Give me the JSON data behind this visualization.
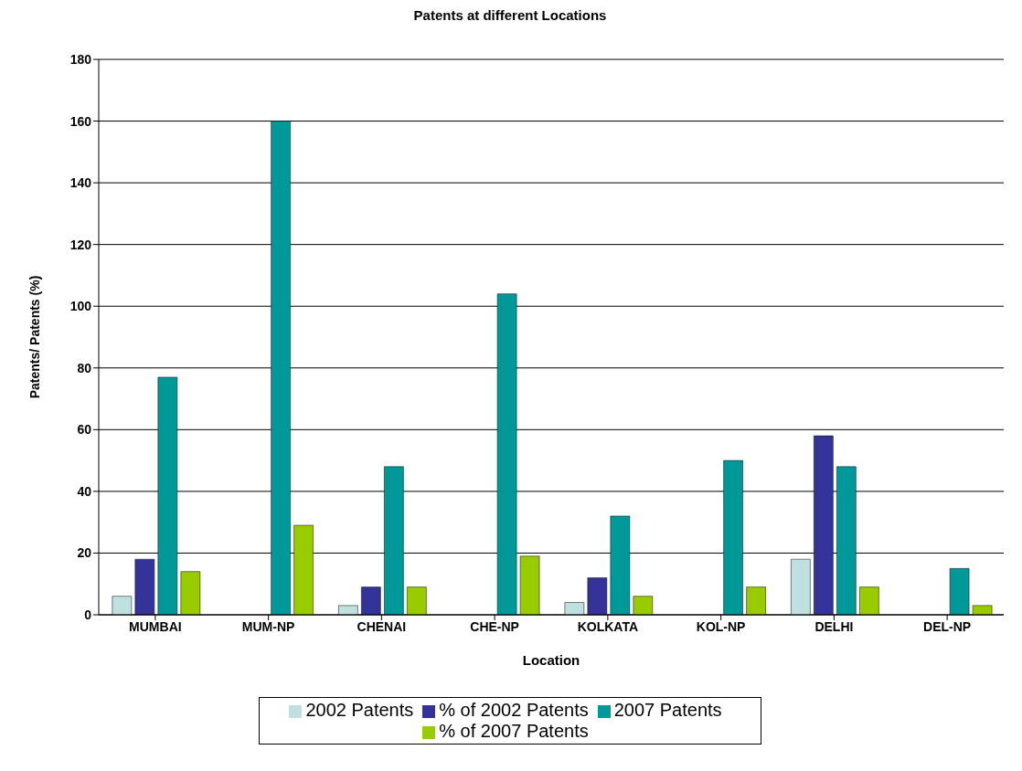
{
  "chart_data": {
    "type": "bar",
    "title": "Patents at different Locations",
    "xlabel": "Location",
    "ylabel": "Patents/ Patents (%)",
    "categories": [
      "MUMBAI",
      "MUM-NP",
      "CHENAI",
      "CHE-NP",
      "KOLKATA",
      "KOL-NP",
      "DELHI",
      "DEL-NP"
    ],
    "series": [
      {
        "name": "2002 Patents",
        "color": "#c0e0e0",
        "values": [
          6,
          0,
          3,
          0,
          4,
          0,
          18,
          0
        ]
      },
      {
        "name": "% of 2002 Patents",
        "color": "#333399",
        "values": [
          18,
          0,
          9,
          0,
          12,
          0,
          58,
          0
        ]
      },
      {
        "name": "2007 Patents",
        "color": "#009999",
        "values": [
          77,
          160,
          48,
          104,
          32,
          50,
          48,
          15
        ]
      },
      {
        "name": "% of 2007 Patents",
        "color": "#99cc00",
        "values": [
          14,
          29,
          9,
          19,
          6,
          9,
          9,
          3
        ]
      }
    ],
    "ylim": [
      0,
      180
    ],
    "yticks": [
      0,
      20,
      40,
      60,
      80,
      100,
      120,
      140,
      160,
      180
    ],
    "grid": "y",
    "legend": "bottom"
  }
}
